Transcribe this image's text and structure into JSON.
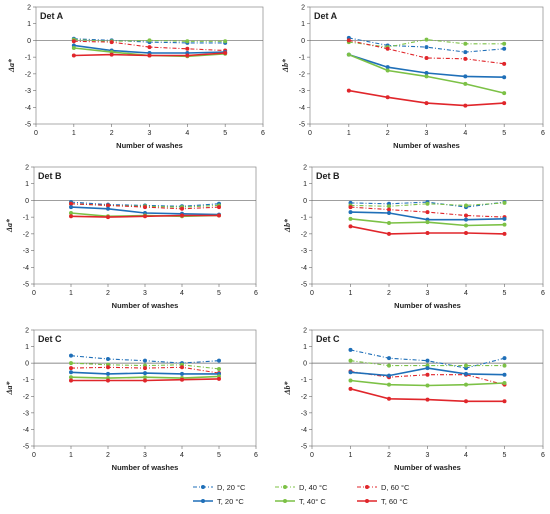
{
  "colors": {
    "D, 20 °C": "#1f6fb8",
    "D, 40 °C": "#7cc146",
    "D, 60 °C": "#e0262b",
    "T, 20 °C": "#1f6fb8",
    "T, 40° C": "#7cc146",
    "T, 60 °C": "#e0262b"
  },
  "legend": {
    "placement": "bottom",
    "entries": [
      {
        "name": "D, 20 °C",
        "style": "dashed"
      },
      {
        "name": "D, 40 °C",
        "style": "dashed"
      },
      {
        "name": "D, 60 °C",
        "style": "dashed"
      },
      {
        "name": "T, 20 °C",
        "style": "solid"
      },
      {
        "name": "T, 40° C",
        "style": "solid"
      },
      {
        "name": "T, 60 °C",
        "style": "solid"
      }
    ]
  },
  "chart_data": [
    {
      "type": "line",
      "title": "Det A",
      "xlabel": "Number of washes",
      "ylabel": "Δa*",
      "xlim": [
        0,
        6
      ],
      "ylim": [
        -5,
        2
      ],
      "xticks": [
        0,
        1,
        2,
        3,
        4,
        5,
        6
      ],
      "yticks": [
        2,
        1,
        0,
        -1,
        -2,
        -3,
        -4,
        -5
      ],
      "x": [
        1,
        2,
        3,
        4,
        5
      ],
      "series": [
        {
          "name": "D, 20 °C",
          "values": [
            0.1,
            0.0,
            -0.1,
            -0.15,
            -0.15
          ]
        },
        {
          "name": "D, 40 °C",
          "values": [
            0.05,
            -0.05,
            0.0,
            -0.05,
            -0.05
          ]
        },
        {
          "name": "D, 60 °C",
          "values": [
            -0.05,
            -0.1,
            -0.4,
            -0.5,
            -0.6
          ]
        },
        {
          "name": "T, 20 °C",
          "values": [
            -0.3,
            -0.6,
            -0.75,
            -0.75,
            -0.7
          ]
        },
        {
          "name": "T, 40° C",
          "values": [
            -0.45,
            -0.7,
            -0.9,
            -0.95,
            -0.8
          ]
        },
        {
          "name": "T, 60 °C",
          "values": [
            -0.9,
            -0.85,
            -0.9,
            -0.9,
            -0.75
          ]
        }
      ]
    },
    {
      "type": "line",
      "title": "Det A",
      "xlabel": "Number of washes",
      "ylabel": "Δb*",
      "xlim": [
        0,
        6
      ],
      "ylim": [
        -5,
        2
      ],
      "xticks": [
        0,
        1,
        2,
        3,
        4,
        5,
        6
      ],
      "yticks": [
        2,
        1,
        0,
        -1,
        -2,
        -3,
        -4,
        -5
      ],
      "x": [
        1,
        2,
        3,
        4,
        5
      ],
      "series": [
        {
          "name": "D, 20 °C",
          "values": [
            0.15,
            -0.3,
            -0.4,
            -0.7,
            -0.5
          ]
        },
        {
          "name": "D, 40 °C",
          "values": [
            -0.1,
            -0.4,
            0.05,
            -0.2,
            -0.2
          ]
        },
        {
          "name": "D, 60 °C",
          "values": [
            0.0,
            -0.5,
            -1.05,
            -1.1,
            -1.4
          ]
        },
        {
          "name": "T, 20 °C",
          "values": [
            -0.85,
            -1.6,
            -1.95,
            -2.15,
            -2.2
          ]
        },
        {
          "name": "T, 40° C",
          "values": [
            -0.85,
            -1.8,
            -2.15,
            -2.6,
            -3.15
          ]
        },
        {
          "name": "T, 60 °C",
          "values": [
            -3.0,
            -3.4,
            -3.75,
            -3.9,
            -3.75
          ]
        }
      ]
    },
    {
      "type": "line",
      "title": "Det B",
      "xlabel": "Number of washes",
      "ylabel": "Δa*",
      "xlim": [
        0,
        6
      ],
      "ylim": [
        -5,
        2
      ],
      "xticks": [
        0,
        1,
        2,
        3,
        4,
        5,
        6
      ],
      "yticks": [
        2,
        1,
        0,
        -1,
        -2,
        -3,
        -4,
        -5
      ],
      "x": [
        1,
        2,
        3,
        4,
        5
      ],
      "series": [
        {
          "name": "D, 20 °C",
          "values": [
            -0.1,
            -0.25,
            -0.3,
            -0.35,
            -0.2
          ]
        },
        {
          "name": "D, 40 °C",
          "values": [
            -0.2,
            -0.3,
            -0.35,
            -0.4,
            -0.3
          ]
        },
        {
          "name": "D, 60 °C",
          "values": [
            -0.2,
            -0.3,
            -0.4,
            -0.5,
            -0.4
          ]
        },
        {
          "name": "T, 20 °C",
          "values": [
            -0.4,
            -0.5,
            -0.75,
            -0.8,
            -0.85
          ]
        },
        {
          "name": "T, 40° C",
          "values": [
            -0.75,
            -0.95,
            -0.9,
            -0.95,
            -0.9
          ]
        },
        {
          "name": "T, 60 °C",
          "values": [
            -0.95,
            -1.0,
            -0.95,
            -0.9,
            -0.9
          ]
        }
      ]
    },
    {
      "type": "line",
      "title": "Det B",
      "xlabel": "Number of washes",
      "ylabel": "Δb*",
      "xlim": [
        0,
        6
      ],
      "ylim": [
        -5,
        2
      ],
      "xticks": [
        0,
        1,
        2,
        3,
        4,
        5,
        6
      ],
      "yticks": [
        2,
        1,
        0,
        -1,
        -2,
        -3,
        -4,
        -5
      ],
      "x": [
        1,
        2,
        3,
        4,
        5
      ],
      "series": [
        {
          "name": "D, 20 °C",
          "values": [
            -0.15,
            -0.2,
            -0.1,
            -0.4,
            -0.1
          ]
        },
        {
          "name": "D, 40 °C",
          "values": [
            -0.3,
            -0.35,
            -0.2,
            -0.3,
            -0.15
          ]
        },
        {
          "name": "D, 60 °C",
          "values": [
            -0.4,
            -0.55,
            -0.7,
            -0.9,
            -1.0
          ]
        },
        {
          "name": "T, 20 °C",
          "values": [
            -0.7,
            -0.75,
            -1.15,
            -1.15,
            -1.1
          ]
        },
        {
          "name": "T, 40° C",
          "values": [
            -1.1,
            -1.35,
            -1.3,
            -1.5,
            -1.45
          ]
        },
        {
          "name": "T, 60 °C",
          "values": [
            -1.55,
            -2.0,
            -1.95,
            -1.95,
            -2.0
          ]
        }
      ]
    },
    {
      "type": "line",
      "title": "Det C",
      "xlabel": "Number of washes",
      "ylabel": "Δa*",
      "xlim": [
        0,
        6
      ],
      "ylim": [
        -5,
        2
      ],
      "xticks": [
        0,
        1,
        2,
        3,
        4,
        5,
        6
      ],
      "yticks": [
        2,
        1,
        0,
        -1,
        -2,
        -3,
        -4,
        -5
      ],
      "x": [
        1,
        2,
        3,
        4,
        5
      ],
      "series": [
        {
          "name": "D, 20 °C",
          "values": [
            0.45,
            0.25,
            0.15,
            0.0,
            0.15
          ]
        },
        {
          "name": "D, 40 °C",
          "values": [
            0.0,
            -0.1,
            -0.15,
            -0.1,
            -0.35
          ]
        },
        {
          "name": "D, 60 °C",
          "values": [
            -0.3,
            -0.25,
            -0.3,
            -0.25,
            -0.6
          ]
        },
        {
          "name": "T, 20 °C",
          "values": [
            -0.55,
            -0.65,
            -0.6,
            -0.65,
            -0.65
          ]
        },
        {
          "name": "T, 40° C",
          "values": [
            -0.85,
            -0.9,
            -0.85,
            -0.9,
            -0.8
          ]
        },
        {
          "name": "T, 60 °C",
          "values": [
            -1.05,
            -1.05,
            -1.05,
            -1.0,
            -0.95
          ]
        }
      ]
    },
    {
      "type": "line",
      "title": "Det C",
      "xlabel": "Number of washes",
      "ylabel": "Δb*",
      "xlim": [
        0,
        6
      ],
      "ylim": [
        -5,
        2
      ],
      "xticks": [
        0,
        1,
        2,
        3,
        4,
        5,
        6
      ],
      "yticks": [
        2,
        1,
        0,
        -1,
        -2,
        -3,
        -4,
        -5
      ],
      "x": [
        1,
        2,
        3,
        4,
        5
      ],
      "series": [
        {
          "name": "D, 20 °C",
          "values": [
            0.8,
            0.3,
            0.15,
            -0.3,
            0.3
          ]
        },
        {
          "name": "D, 40 °C",
          "values": [
            0.15,
            -0.15,
            -0.15,
            -0.15,
            -0.15
          ]
        },
        {
          "name": "D, 60 °C",
          "values": [
            -0.5,
            -0.85,
            -0.7,
            -0.7,
            -1.3
          ]
        },
        {
          "name": "T, 20 °C",
          "values": [
            -0.55,
            -0.75,
            -0.3,
            -0.65,
            -0.7
          ]
        },
        {
          "name": "T, 40° C",
          "values": [
            -1.05,
            -1.3,
            -1.35,
            -1.3,
            -1.2
          ]
        },
        {
          "name": "T, 60 °C",
          "values": [
            -1.55,
            -2.15,
            -2.2,
            -2.3,
            -2.3
          ]
        }
      ]
    }
  ]
}
